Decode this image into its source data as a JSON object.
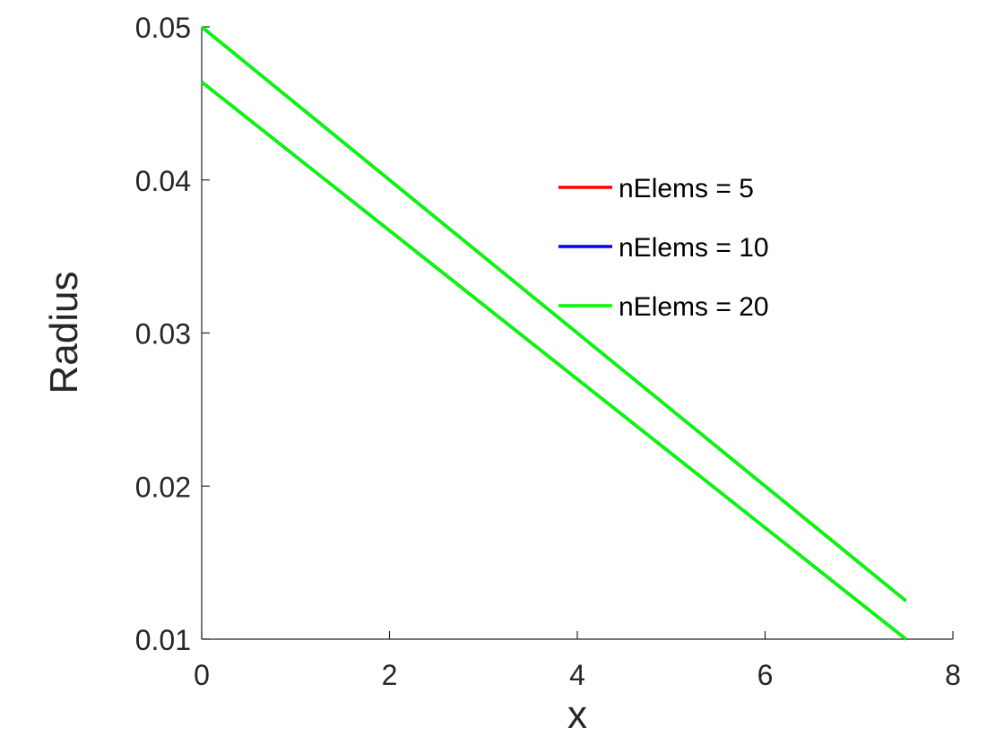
{
  "chart_data": {
    "type": "line",
    "title": "",
    "xlabel": "x",
    "ylabel": "Radius",
    "xlim": [
      0,
      8
    ],
    "ylim": [
      0.01,
      0.05
    ],
    "xticks": [
      0,
      2,
      4,
      6,
      8
    ],
    "xtick_labels": [
      "0",
      "2",
      "4",
      "6",
      "8"
    ],
    "yticks": [
      0.01,
      0.02,
      0.03,
      0.04,
      0.05
    ],
    "ytick_labels": [
      "0.01",
      "0.02",
      "0.03",
      "0.04",
      "0.05"
    ],
    "grid": false,
    "legend_position": "upper-right-inside",
    "series": [
      {
        "name": "nElems = 5",
        "color": "#ff0000",
        "lines": [
          {
            "x": [
              0,
              7.5
            ],
            "y": [
              0.05,
              0.0125
            ]
          },
          {
            "x": [
              0,
              7.5
            ],
            "y": [
              0.0464,
              0.01
            ]
          }
        ]
      },
      {
        "name": "nElems = 10",
        "color": "#0000ff",
        "lines": [
          {
            "x": [
              0,
              7.5
            ],
            "y": [
              0.05,
              0.0125
            ]
          },
          {
            "x": [
              0,
              7.5
            ],
            "y": [
              0.0464,
              0.01
            ]
          }
        ]
      },
      {
        "name": "nElems = 20",
        "color": "#00ff00",
        "lines": [
          {
            "x": [
              0,
              7.5
            ],
            "y": [
              0.05,
              0.0125
            ]
          },
          {
            "x": [
              0,
              7.5
            ],
            "y": [
              0.0464,
              0.01
            ]
          }
        ]
      }
    ]
  }
}
